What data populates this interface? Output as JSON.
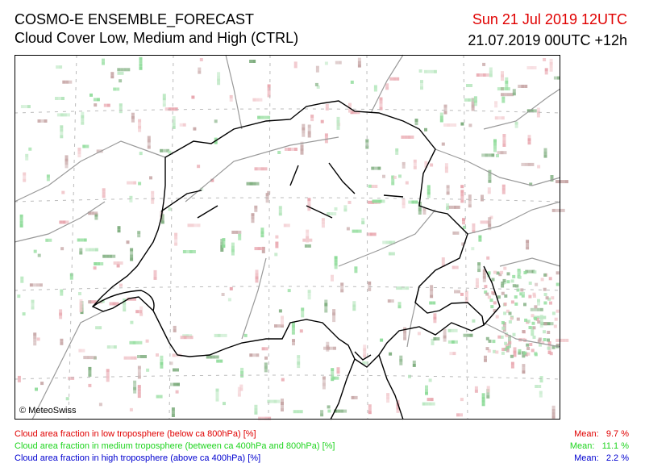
{
  "header": {
    "title": "COSMO-E ENSEMBLE_FORECAST",
    "subtitle": "Cloud Cover Low, Medium and High (CTRL)",
    "valid_time": "Sun 21 Jul 2019 12UTC",
    "run": "21.07.2019 00UTC +12h"
  },
  "map": {
    "copyright": "© MeteoSwiss"
  },
  "legend": [
    {
      "text": "Cloud area fraction in low troposphere (below ca 800hPa) [%]",
      "mean_label": "Mean:",
      "mean": "9.7 %"
    },
    {
      "text": "Cloud area fraction in medium troposphere (between ca 400hPa and 800hPa) [%]",
      "mean_label": "Mean:",
      "mean": "11.1 %"
    },
    {
      "text": "Cloud area fraction in high troposphere (above ca 400hPa) [%]",
      "mean_label": "Mean:",
      "mean": "2.2 %"
    }
  ]
}
